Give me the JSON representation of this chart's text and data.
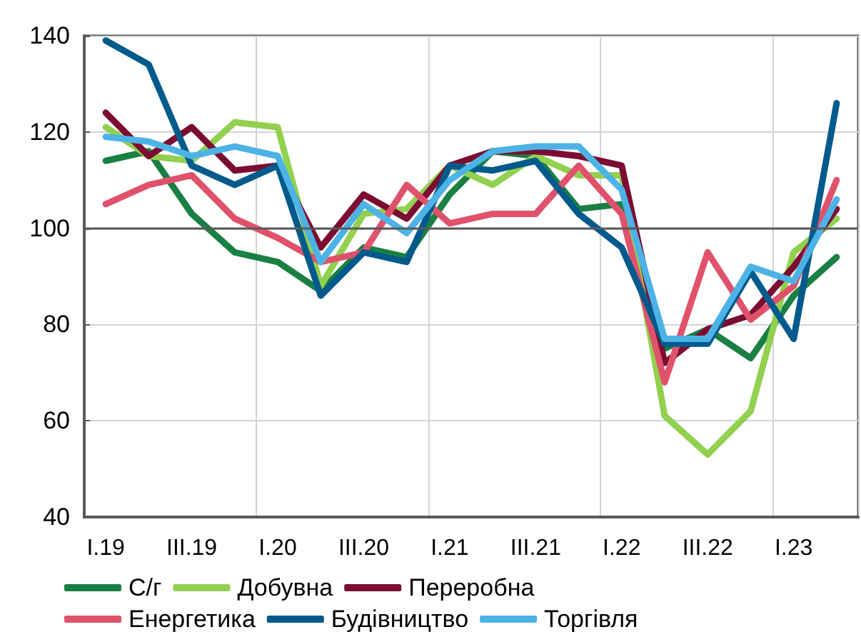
{
  "chart_data": {
    "type": "line",
    "categories": [
      "I.19",
      null,
      "III.19",
      null,
      "I.20",
      null,
      "III.20",
      null,
      "I.21",
      null,
      "III.21",
      null,
      "I.22",
      null,
      "III.22",
      null,
      "I.23",
      null
    ],
    "series": [
      {
        "name": "С/г",
        "color": "#1a7f43",
        "values": [
          114,
          116,
          103,
          95,
          93,
          87,
          96,
          94,
          107,
          116,
          115,
          104,
          105,
          75,
          79,
          73,
          86,
          94
        ]
      },
      {
        "name": "Добувна",
        "color": "#92d050",
        "values": [
          121,
          115,
          114,
          122,
          121,
          88,
          103,
          104,
          113,
          109,
          115,
          111,
          111,
          61,
          53,
          62,
          95,
          102
        ]
      },
      {
        "name": "Переробна",
        "color": "#7b0d32",
        "values": [
          124,
          115,
          121,
          112,
          113,
          96,
          107,
          102,
          113,
          116,
          116,
          115,
          113,
          72,
          79,
          82,
          92,
          104
        ]
      },
      {
        "name": "Енергетика",
        "color": "#e0526b",
        "values": [
          105,
          109,
          111,
          102,
          98,
          93,
          95,
          109,
          101,
          103,
          103,
          113,
          103,
          68,
          95,
          81,
          88,
          110
        ]
      },
      {
        "name": "Будівництво",
        "color": "#005a8c",
        "values": [
          139,
          134,
          113,
          109,
          113,
          86,
          95,
          93,
          113,
          112,
          114,
          103,
          96,
          76,
          76,
          91,
          77,
          126
        ]
      },
      {
        "name": "Торгівля",
        "color": "#4db3e6",
        "values": [
          119,
          118,
          115,
          117,
          115,
          93,
          105,
          99,
          110,
          116,
          117,
          117,
          108,
          77,
          77,
          92,
          89,
          106
        ]
      }
    ],
    "ylim": [
      40,
      140
    ],
    "yticks": [
      40,
      60,
      80,
      100,
      120,
      140
    ],
    "ref_lines": [
      {
        "axis": "y",
        "value": 100,
        "label": null,
        "color": "#595959"
      }
    ],
    "grid": true,
    "legend": "bottom",
    "marker": "none",
    "line_style": "solid"
  }
}
